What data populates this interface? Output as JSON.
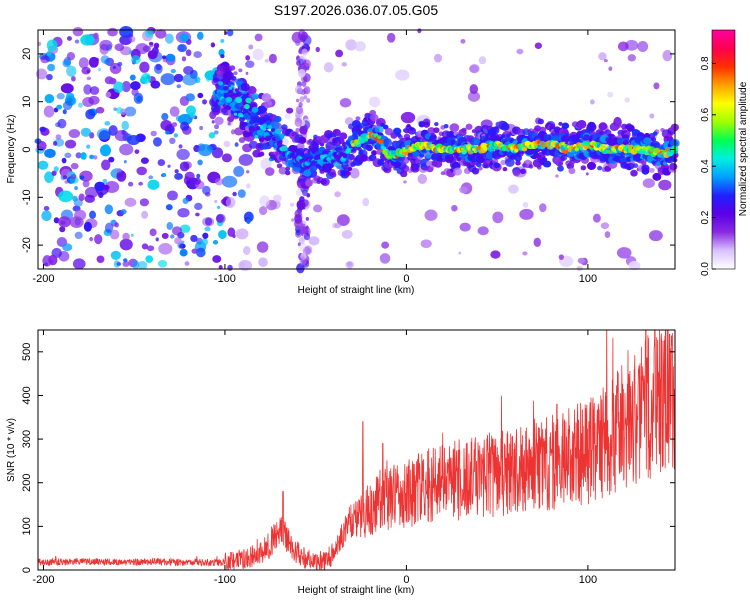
{
  "chart_data": [
    {
      "type": "heatmap",
      "title": "S197.2026.036.07.05.G05",
      "xlabel": "Height of straight line (km)",
      "ylabel": "Frequency (Hz)",
      "xlim": [
        -203,
        148
      ],
      "ylim": [
        -25,
        25
      ],
      "xticks": [
        -200,
        -100,
        0,
        100
      ],
      "yticks": [
        -20,
        -10,
        0,
        10,
        20
      ],
      "xtick_labels": [
        "-200",
        "-100",
        "0",
        "100"
      ],
      "ytick_labels": [
        "-20",
        "-10",
        "0",
        "10",
        "20"
      ],
      "colorbar": {
        "label": "Normalized spectral amplitude",
        "range": [
          0.0,
          0.93
        ],
        "ticks": [
          0.0,
          0.2,
          0.4,
          0.6,
          0.8
        ],
        "tick_labels": [
          "0.0",
          "0.2",
          "0.4",
          "0.6",
          "0.8"
        ],
        "colormap": [
          "#ffffff",
          "#d9c2ff",
          "#8a2be2",
          "#5a00e6",
          "#2020ff",
          "#00a0ff",
          "#00f0e0",
          "#00ff50",
          "#a0ff00",
          "#ffff00",
          "#ffa000",
          "#ff3000",
          "#ff0050",
          "#ff00a0"
        ]
      },
      "ridge": {
        "x": [
          -100,
          -90,
          -80,
          -75,
          -70,
          -65,
          -60,
          -55,
          -50,
          -45,
          -40,
          -35,
          -30,
          -25,
          -20,
          -15,
          -10,
          -5,
          0,
          10,
          20,
          30,
          40,
          50,
          60,
          70,
          80,
          90,
          100,
          110,
          120,
          130,
          140,
          148
        ],
        "y": [
          12,
          9,
          5,
          3,
          1,
          -1,
          -2,
          -3,
          -2,
          -2,
          -1,
          -2,
          1,
          2,
          3,
          2,
          -1,
          -1,
          0,
          1,
          0,
          0,
          0,
          1,
          0,
          1,
          1,
          0,
          1,
          0,
          0,
          0,
          -1,
          0
        ]
      }
    },
    {
      "type": "line",
      "title": "",
      "xlabel": "Height of straight line (km)",
      "ylabel": "SNR (10 * v/v)",
      "xlim": [
        -203,
        148
      ],
      "ylim": [
        0,
        550
      ],
      "xticks": [
        -200,
        -100,
        0,
        100
      ],
      "yticks": [
        0,
        100,
        200,
        300,
        400,
        500
      ],
      "xtick_labels": [
        "-200",
        "-100",
        "0",
        "100"
      ],
      "ytick_labels": [
        "0",
        "100",
        "200",
        "300",
        "400",
        "500"
      ],
      "color": "#ee3333",
      "trend": {
        "x": [
          -203,
          -180,
          -160,
          -140,
          -120,
          -100,
          -90,
          -80,
          -75,
          -70,
          -65,
          -60,
          -55,
          -50,
          -45,
          -40,
          -35,
          -30,
          -25,
          -20,
          -10,
          0,
          10,
          20,
          40,
          60,
          80,
          100,
          110,
          120,
          130,
          140,
          148
        ],
        "y": [
          18,
          20,
          18,
          19,
          17,
          18,
          25,
          40,
          60,
          90,
          70,
          40,
          25,
          15,
          20,
          40,
          80,
          110,
          120,
          140,
          165,
          175,
          190,
          200,
          215,
          225,
          245,
          270,
          300,
          330,
          360,
          400,
          380
        ]
      },
      "spikes": [
        {
          "x": -68,
          "y": 180
        },
        {
          "x": -24,
          "y": 340
        },
        {
          "x": -13,
          "y": 290
        },
        {
          "x": 83,
          "y": 380
        },
        {
          "x": 128,
          "y": 460
        },
        {
          "x": 137,
          "y": 550
        },
        {
          "x": 145,
          "y": 540
        }
      ]
    }
  ]
}
